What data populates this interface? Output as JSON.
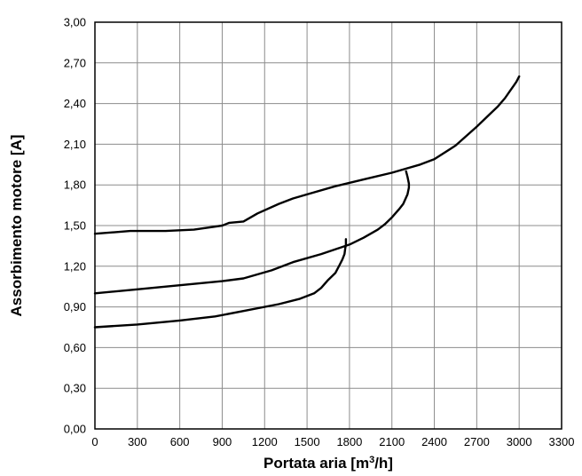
{
  "chart_data": {
    "type": "line",
    "title": "",
    "xlabel_main": "Portata aria [m",
    "xlabel_sup": "3",
    "xlabel_end": "/h]",
    "ylabel": "Assorbimento motore [A]",
    "xlim": [
      0,
      3300
    ],
    "ylim": [
      0,
      3.0
    ],
    "x_ticks": [
      0,
      300,
      600,
      900,
      1200,
      1500,
      1800,
      2100,
      2400,
      2700,
      3000,
      3300
    ],
    "x_tick_labels": [
      "0",
      "300",
      "600",
      "900",
      "1200",
      "1500",
      "1800",
      "2100",
      "2400",
      "2700",
      "3000",
      "3300"
    ],
    "y_ticks": [
      0,
      0.3,
      0.6,
      0.9,
      1.2,
      1.5,
      1.8,
      2.1,
      2.4,
      2.7,
      3.0
    ],
    "y_tick_labels": [
      "0,00",
      "0,30",
      "0,60",
      "0,90",
      "1,20",
      "1,50",
      "1,80",
      "2,10",
      "2,40",
      "2,70",
      "3,00"
    ],
    "grid": true,
    "legend": "none",
    "line_color": "#000000",
    "grid_color": "#8c8c8c",
    "series": [
      {
        "x": [
          0,
          250,
          500,
          700,
          900,
          950,
          1050,
          1150,
          1300,
          1400,
          1500,
          1700,
          1900,
          2100,
          2200,
          2300,
          2400,
          2550,
          2700,
          2850,
          2900,
          2940,
          2960,
          2980,
          3000
        ],
        "y": [
          1.44,
          1.46,
          1.46,
          1.47,
          1.5,
          1.52,
          1.53,
          1.59,
          1.66,
          1.7,
          1.73,
          1.79,
          1.84,
          1.89,
          1.92,
          1.95,
          1.99,
          2.09,
          2.23,
          2.38,
          2.44,
          2.5,
          2.53,
          2.56,
          2.6
        ]
      },
      {
        "x": [
          0,
          300,
          600,
          900,
          1050,
          1250,
          1400,
          1600,
          1800,
          1900,
          2000,
          2050,
          2100,
          2150,
          2180,
          2210,
          2220,
          2220,
          2210,
          2200
        ],
        "y": [
          1.0,
          1.03,
          1.06,
          1.09,
          1.11,
          1.17,
          1.23,
          1.29,
          1.36,
          1.41,
          1.47,
          1.51,
          1.56,
          1.62,
          1.66,
          1.73,
          1.78,
          1.81,
          1.86,
          1.9
        ]
      },
      {
        "x": [
          0,
          300,
          600,
          850,
          1050,
          1300,
          1450,
          1550,
          1600,
          1650,
          1700,
          1730,
          1750,
          1765,
          1770,
          1775,
          1775
        ],
        "y": [
          0.75,
          0.77,
          0.8,
          0.83,
          0.87,
          0.92,
          0.96,
          1.0,
          1.04,
          1.1,
          1.15,
          1.21,
          1.25,
          1.29,
          1.33,
          1.36,
          1.4
        ]
      }
    ]
  }
}
